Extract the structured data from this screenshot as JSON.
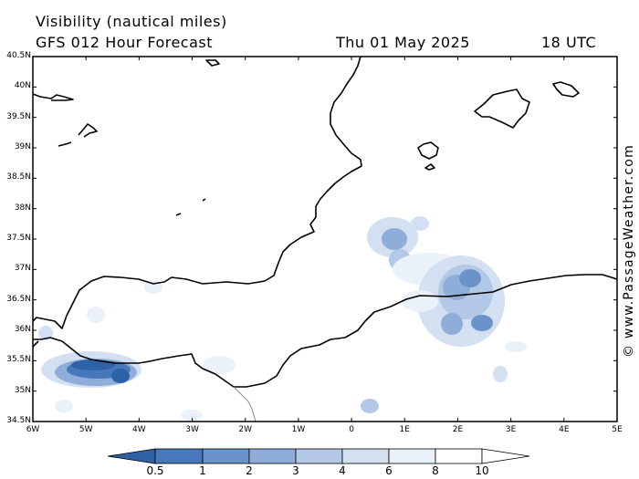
{
  "header": {
    "title": "Visibility (nautical miles)",
    "model": "GFS 012 Hour Forecast",
    "date": "Thu 01 May 2025",
    "time": "18 UTC"
  },
  "map": {
    "lat_labels": [
      "40.5N",
      "40N",
      "39.5N",
      "39N",
      "38.5N",
      "38N",
      "37.5N",
      "37N",
      "36.5N",
      "36N",
      "35.5N",
      "35N",
      "34.5N"
    ],
    "lon_labels": [
      "6W",
      "5W",
      "4W",
      "3W",
      "2W",
      "1W",
      "0",
      "1E",
      "2E",
      "3E",
      "4E",
      "5E"
    ],
    "lat_range": [
      34.5,
      40.5
    ],
    "lon_range": [
      -6,
      5
    ],
    "frame_color": "#000000",
    "coast_color": "#000000"
  },
  "legend": {
    "labels": [
      "0.5",
      "1",
      "2",
      "3",
      "4",
      "6",
      "8",
      "10"
    ],
    "colors": [
      "#2e62a6",
      "#4678bb",
      "#6a93cb",
      "#8eaed9",
      "#b2c8e6",
      "#d3e0f1",
      "#eaf1f9",
      "#ffffff"
    ]
  },
  "credit": "© www.PassageWeather.com"
}
